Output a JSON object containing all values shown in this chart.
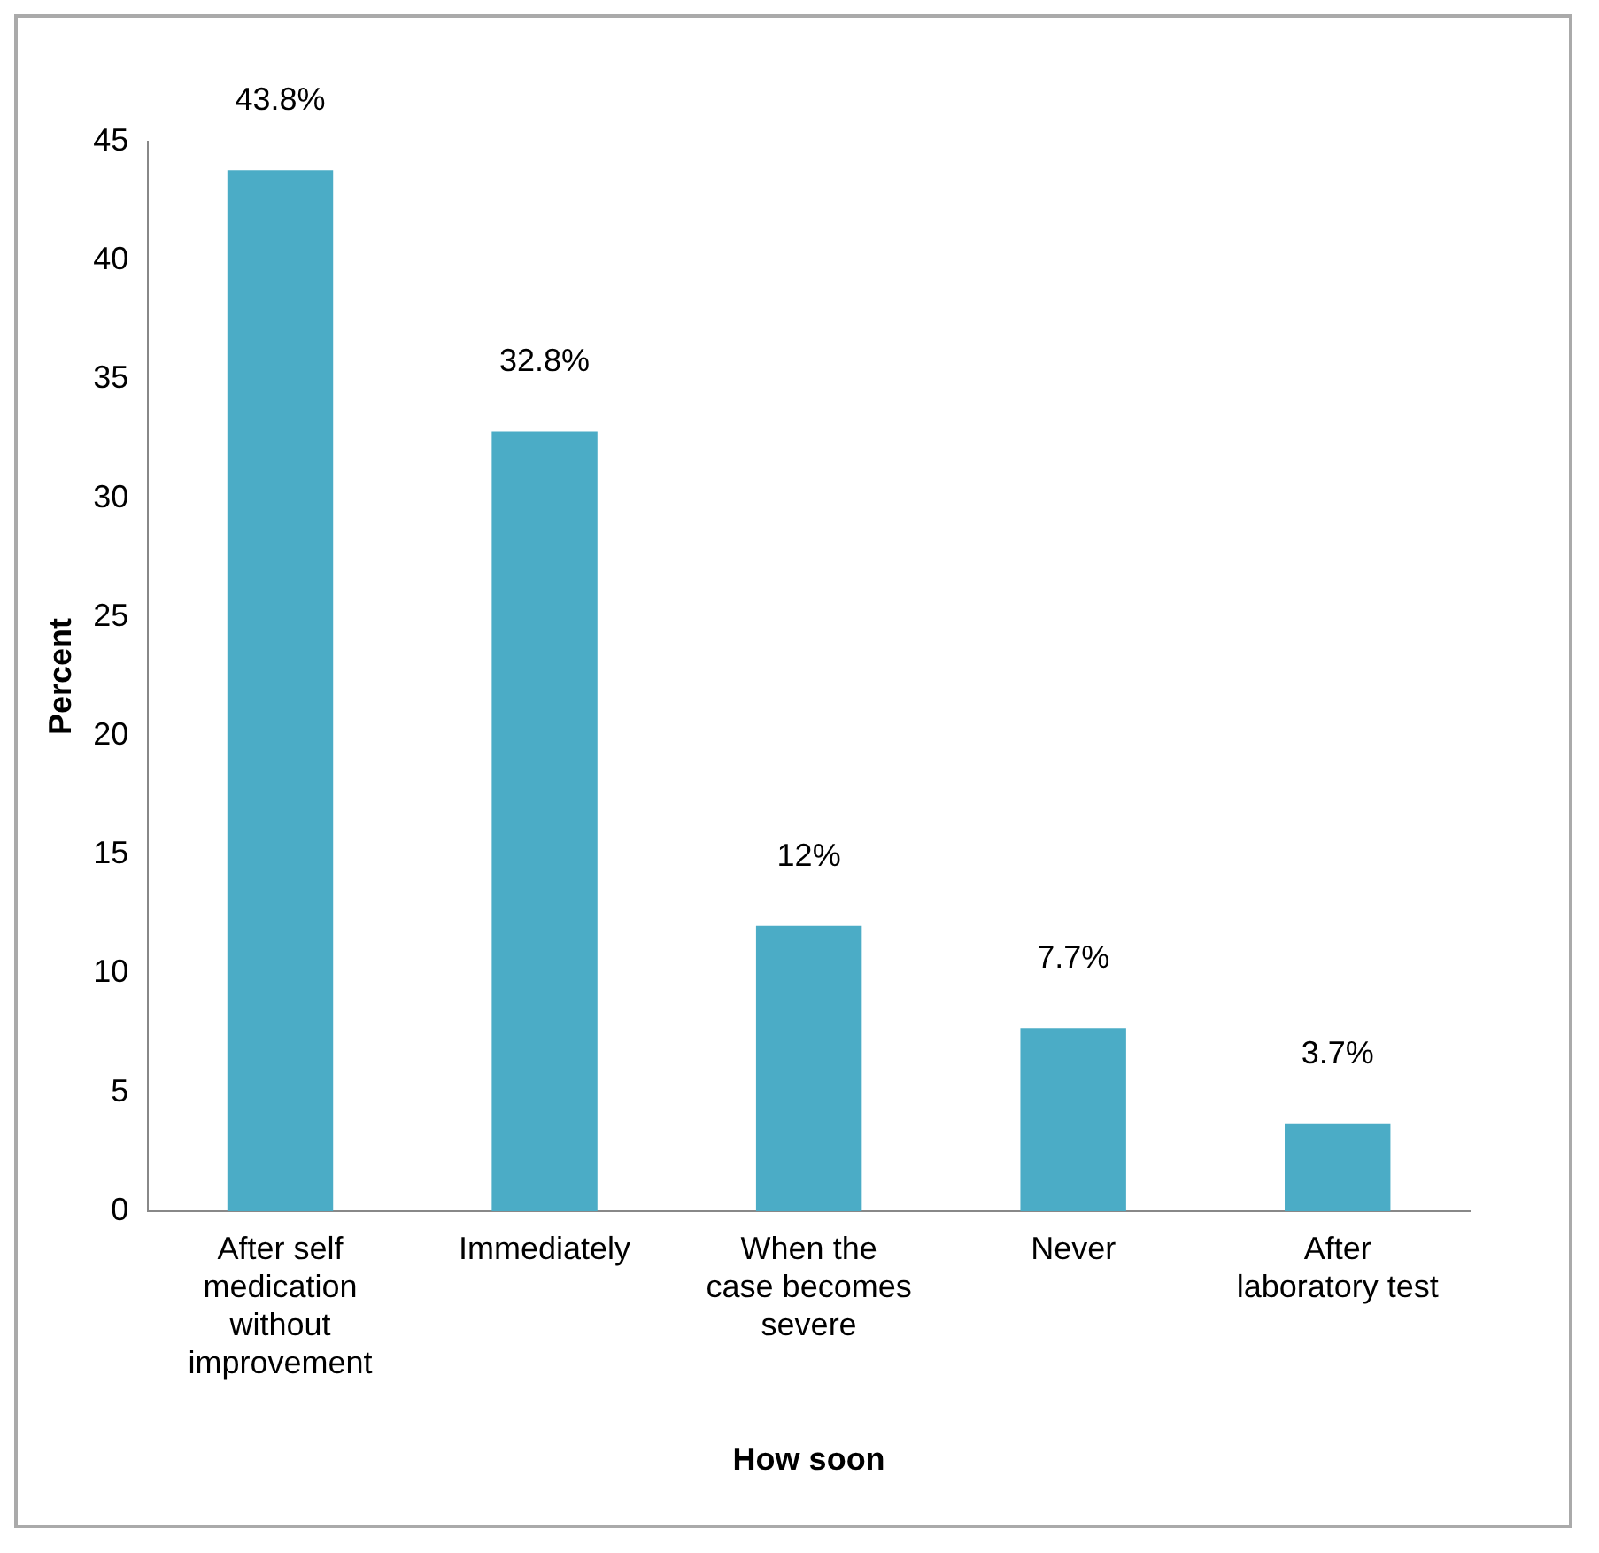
{
  "chart_data": {
    "type": "bar",
    "xlabel": "How soon",
    "ylabel": "Percent",
    "categories": [
      "After self medication without improvement",
      "Immediately",
      "When the case becomes severe",
      "Never",
      "After laboratory test"
    ],
    "values": [
      43.8,
      32.8,
      12,
      7.7,
      3.7
    ],
    "value_labels": [
      "43.8%",
      "32.8%",
      "12%",
      "7.7%",
      "3.7%"
    ],
    "color": "#4bacc6",
    "ylim": [
      0,
      45
    ],
    "yticks": [
      0,
      5,
      10,
      15,
      20,
      25,
      30,
      35,
      40,
      45
    ],
    "grid": false,
    "legend": false
  }
}
